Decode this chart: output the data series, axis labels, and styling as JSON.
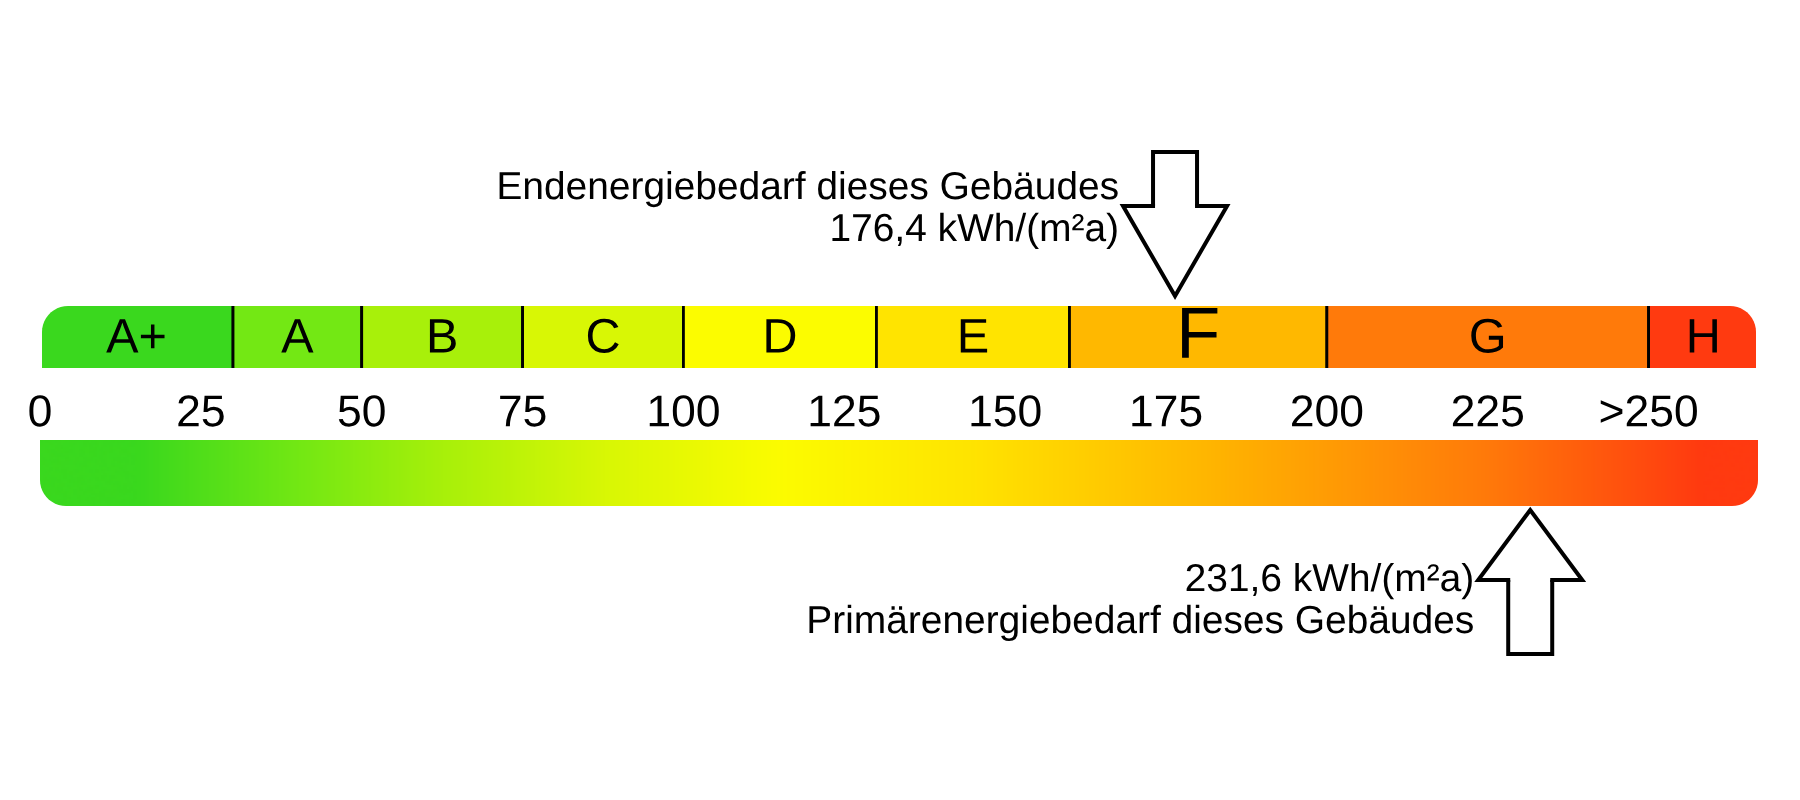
{
  "chart_data": {
    "type": "bar",
    "orientation": "horizontal",
    "stacked": true,
    "categories": [
      null
    ],
    "series": [
      {
        "name": "A+",
        "color": "#3ad81e",
        "values": [
          30
        ]
      },
      {
        "name": "A",
        "color": "#73e814",
        "values": [
          20
        ]
      },
      {
        "name": "B",
        "color": "#a8f00a",
        "values": [
          25
        ]
      },
      {
        "name": "C",
        "color": "#d8f705",
        "values": [
          25
        ]
      },
      {
        "name": "D",
        "color": "#fcfc00",
        "values": [
          30
        ]
      },
      {
        "name": "E",
        "color": "#ffe400",
        "values": [
          30
        ]
      },
      {
        "name": "F",
        "color": "#ffb800",
        "values": [
          40
        ]
      },
      {
        "name": "G",
        "color": "#ff7a0a",
        "values": [
          50
        ]
      },
      {
        "name": "H",
        "color": "#ff3a10",
        "values": [
          17
        ]
      }
    ],
    "xlim": [
      0,
      267
    ],
    "xticks": [
      0,
      25,
      50,
      75,
      100,
      125,
      150,
      175,
      200,
      225,
      {
        "value": 250,
        "label": ">250"
      }
    ],
    "tick_labels": "x",
    "ref_lines": [
      {
        "axis": "x",
        "value": 176.4,
        "label": "Endenergiebedarf dieses Gebäudes\n176,4 kWh/(m²a)"
      },
      {
        "axis": "x",
        "value": 231.6,
        "label": "231,6 kWh/(m²a)\nPrimärenergiebedarf dieses Gebäudes"
      }
    ]
  }
}
